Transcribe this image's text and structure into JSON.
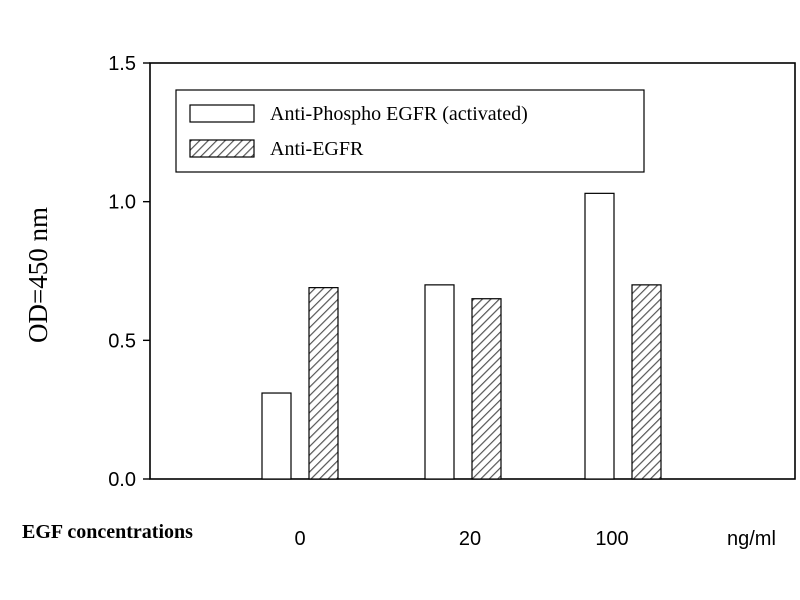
{
  "chart_data": {
    "type": "bar",
    "ylabel": "OD=450 nm",
    "xlabel": "EGF concentrations",
    "x_unit": "ng/ml",
    "categories": [
      "0",
      "20",
      "100"
    ],
    "ylim": [
      0,
      1.5
    ],
    "yticks": [
      "0.0",
      "0.5",
      "1.0",
      "1.5"
    ],
    "ytick_values": [
      0,
      0.5,
      1.0,
      1.5
    ],
    "grid": false,
    "legend_position": "top-left",
    "series": [
      {
        "name": "Anti-Phospho EGFR (activated)",
        "values": [
          0.31,
          0.7,
          1.03
        ],
        "fill": "open",
        "color": "#ffffff"
      },
      {
        "name": "Anti-EGFR",
        "values": [
          0.69,
          0.65,
          0.7
        ],
        "fill": "hatched",
        "color": "#888888"
      }
    ]
  }
}
